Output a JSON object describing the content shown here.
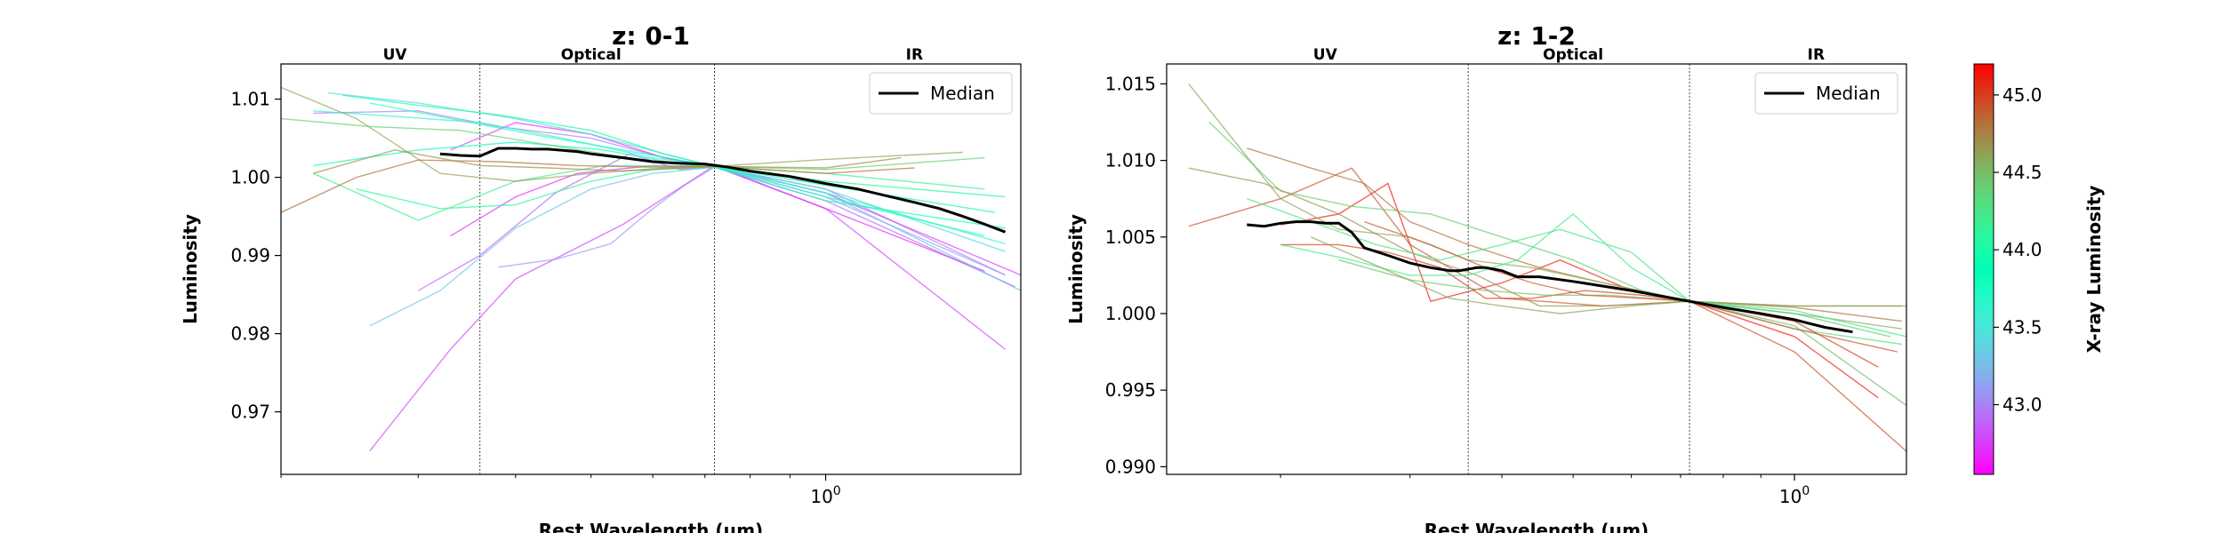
{
  "figure": {
    "colorbar": {
      "label": "X-ray Luminosity",
      "ticks": [
        "43.0",
        "43.5",
        "44.0",
        "44.5",
        "45.0"
      ],
      "range": [
        42.55,
        45.2
      ]
    }
  },
  "chart_data": [
    {
      "type": "line",
      "title": "z: 0-1",
      "xlabel": "Rest Wavelength (μm)",
      "ylabel": "Luminosity",
      "xscale": "log",
      "xlim": [
        0.2,
        1.78
      ],
      "ylim": [
        0.962,
        1.0145
      ],
      "yticks": [
        "0.97",
        "0.98",
        "0.99",
        "1.00",
        "1.01"
      ],
      "xtick_major": [
        "10^0"
      ],
      "vlines": [
        0.36,
        0.72
      ],
      "bands": [
        {
          "label": "UV",
          "x": 0.28
        },
        {
          "label": "Optical",
          "x": 0.5
        },
        {
          "label": "IR",
          "x": 1.3
        }
      ],
      "legend": {
        "label": "Median",
        "position": "upper right"
      },
      "median": {
        "x": [
          0.32,
          0.34,
          0.36,
          0.38,
          0.4,
          0.42,
          0.44,
          0.48,
          0.5,
          0.55,
          0.6,
          0.65,
          0.7,
          0.75,
          0.8,
          0.9,
          1.0,
          1.1,
          1.2,
          1.3,
          1.4,
          1.5,
          1.6,
          1.7
        ],
        "y": [
          1.003,
          1.0028,
          1.0027,
          1.0037,
          1.0037,
          1.0036,
          1.0036,
          1.0033,
          1.003,
          1.0025,
          1.002,
          1.0018,
          1.0017,
          1.0013,
          1.0008,
          1.0001,
          0.9992,
          0.9985,
          0.9976,
          0.9968,
          0.996,
          0.995,
          0.994,
          0.993
        ]
      },
      "series": [
        {
          "lum": 42.8,
          "x": [
            0.26,
            0.33,
            0.4,
            0.55,
            0.72,
            1.0,
            1.7
          ],
          "y": [
            0.965,
            0.978,
            0.987,
            0.994,
            1.0015,
            0.996,
            0.978
          ]
        },
        {
          "lum": 42.9,
          "x": [
            0.3,
            0.36,
            0.45,
            0.56,
            0.65,
            0.72,
            1.0,
            1.75
          ],
          "y": [
            0.9855,
            0.99,
            0.998,
            1.003,
            1.001,
            1.0013,
            0.997,
            0.986
          ]
        },
        {
          "lum": 42.7,
          "x": [
            0.33,
            0.4,
            0.48,
            0.6,
            0.72,
            1.0,
            1.6
          ],
          "y": [
            0.9925,
            0.9975,
            1.0005,
            1.0015,
            1.0014,
            0.996,
            0.988
          ]
        },
        {
          "lum": 43.0,
          "x": [
            0.22,
            0.3,
            0.38,
            0.5,
            0.62,
            0.72,
            1.0,
            1.7
          ],
          "y": [
            1.0082,
            1.0085,
            1.0065,
            1.005,
            1.0025,
            1.0013,
            0.9985,
            0.9875
          ]
        },
        {
          "lum": 42.75,
          "x": [
            0.33,
            0.4,
            0.5,
            0.62,
            0.72,
            1.0,
            1.78
          ],
          "y": [
            1.0035,
            1.007,
            1.0055,
            1.0025,
            1.0014,
            0.998,
            0.9875
          ]
        },
        {
          "lum": 43.1,
          "x": [
            0.38,
            0.45,
            0.53,
            0.6,
            0.66,
            0.72,
            1.0,
            1.7
          ],
          "y": [
            0.9885,
            0.9895,
            0.9915,
            0.996,
            0.999,
            1.0013,
            0.9975,
            0.9875
          ]
        },
        {
          "lum": 43.3,
          "x": [
            0.26,
            0.32,
            0.4,
            0.5,
            0.6,
            0.72,
            1.0,
            1.78
          ],
          "y": [
            0.981,
            0.9855,
            0.9935,
            0.9985,
            1.0005,
            1.0013,
            0.998,
            0.9855
          ]
        },
        {
          "lum": 43.4,
          "x": [
            0.23,
            0.3,
            0.4,
            0.5,
            0.62,
            0.72,
            1.0,
            1.7
          ],
          "y": [
            1.0108,
            1.0095,
            1.0075,
            1.0055,
            1.003,
            1.0014,
            0.9985,
            0.9905
          ]
        },
        {
          "lum": 43.6,
          "x": [
            0.22,
            0.28,
            0.36,
            0.46,
            0.6,
            0.72,
            1.0,
            1.7
          ],
          "y": [
            1.0085,
            1.0078,
            1.007,
            1.005,
            1.0025,
            1.0014,
            0.998,
            0.9915
          ]
        },
        {
          "lum": 43.7,
          "x": [
            0.26,
            0.33,
            0.42,
            0.55,
            0.72,
            1.0,
            1.6
          ],
          "y": [
            1.0095,
            1.0075,
            1.0055,
            1.0035,
            1.0014,
            0.9975,
            0.9925
          ]
        },
        {
          "lum": 43.8,
          "x": [
            0.22,
            0.3,
            0.4,
            0.52,
            0.64,
            0.72,
            1.0,
            1.7
          ],
          "y": [
            1.0015,
            1.0035,
            1.0045,
            1.0035,
            1.0018,
            1.0013,
            0.997,
            0.9935
          ]
        },
        {
          "lum": 44.0,
          "x": [
            0.24,
            0.3,
            0.38,
            0.5,
            0.62,
            0.72,
            1.0,
            1.65
          ],
          "y": [
            1.0105,
            1.0092,
            1.008,
            1.006,
            1.003,
            1.0014,
            0.999,
            0.9955
          ]
        },
        {
          "lum": 44.1,
          "x": [
            0.25,
            0.32,
            0.4,
            0.5,
            0.6,
            0.72,
            1.0,
            1.7
          ],
          "y": [
            0.9985,
            0.996,
            0.9965,
            0.9995,
            1.001,
            1.0013,
            0.9995,
            0.9975
          ]
        },
        {
          "lum": 44.2,
          "x": [
            0.22,
            0.3,
            0.4,
            0.52,
            0.72,
            1.0,
            1.6
          ],
          "y": [
            1.0005,
            0.9945,
            0.9995,
            1.0015,
            1.0014,
            1.0005,
            0.9985
          ]
        },
        {
          "lum": 44.4,
          "x": [
            0.2,
            0.26,
            0.34,
            0.45,
            0.6,
            0.72,
            1.0,
            1.6
          ],
          "y": [
            1.0075,
            1.0065,
            1.006,
            1.004,
            1.002,
            1.0014,
            1.001,
            1.0025
          ]
        },
        {
          "lum": 44.6,
          "x": [
            0.2,
            0.25,
            0.32,
            0.4,
            0.5,
            0.62,
            0.72,
            1.0,
            1.5
          ],
          "y": [
            1.0115,
            1.0075,
            1.0005,
            0.9995,
            1.0005,
            1.0012,
            1.0014,
            1.0023,
            1.0032
          ]
        },
        {
          "lum": 44.8,
          "x": [
            0.2,
            0.25,
            0.3,
            0.38,
            0.48,
            0.6,
            0.72,
            1.0,
            1.3
          ],
          "y": [
            0.9955,
            1.0,
            1.0022,
            1.002,
            1.0015,
            1.0013,
            1.0014,
            1.0005,
            1.0012
          ]
        },
        {
          "lum": 44.7,
          "x": [
            0.22,
            0.28,
            0.36,
            0.44,
            0.55,
            0.72,
            1.0,
            1.25
          ],
          "y": [
            1.0005,
            1.0035,
            1.0015,
            1.0012,
            1.0008,
            1.0014,
            1.0012,
            1.0025
          ]
        }
      ]
    },
    {
      "type": "line",
      "title": "z: 1-2",
      "xlabel": "Rest Wavelength (μm)",
      "ylabel": "Luminosity",
      "xscale": "log",
      "xlim": [
        0.14,
        1.42
      ],
      "ylim": [
        0.9895,
        1.0163
      ],
      "yticks": [
        "0.990",
        "0.995",
        "1.000",
        "1.005",
        "1.010",
        "1.015"
      ],
      "xtick_major": [
        "10^0"
      ],
      "vlines": [
        0.36,
        0.72
      ],
      "bands": [
        {
          "label": "UV",
          "x": 0.23
        },
        {
          "label": "Optical",
          "x": 0.5
        },
        {
          "label": "IR",
          "x": 1.07
        }
      ],
      "legend": {
        "label": "Median",
        "position": "upper right"
      },
      "median": {
        "x": [
          0.18,
          0.19,
          0.2,
          0.21,
          0.22,
          0.23,
          0.24,
          0.25,
          0.26,
          0.28,
          0.3,
          0.32,
          0.34,
          0.35,
          0.37,
          0.38,
          0.4,
          0.42,
          0.45,
          0.5,
          0.6,
          0.72,
          0.8,
          0.9,
          1.0,
          1.1,
          1.2
        ],
        "y": [
          1.0058,
          1.0057,
          1.0059,
          1.006,
          1.006,
          1.0059,
          1.0059,
          1.0053,
          1.0043,
          1.0038,
          1.0033,
          1.003,
          1.0028,
          1.0028,
          1.003,
          1.003,
          1.0028,
          1.0024,
          1.0024,
          1.0021,
          1.0015,
          1.0008,
          1.0004,
          1.0,
          0.9996,
          0.9991,
          0.9988
        ]
      },
      "series": [
        {
          "lum": 44.9,
          "x": [
            0.15,
            0.2,
            0.25,
            0.3,
            0.4,
            0.55,
            0.72,
            1.0,
            1.42
          ],
          "y": [
            1.0057,
            1.0075,
            1.0095,
            1.0045,
            1.001,
            1.0005,
            1.0008,
            0.9975,
            0.991
          ]
        },
        {
          "lum": 45.1,
          "x": [
            0.2,
            0.24,
            0.28,
            0.32,
            0.4,
            0.48,
            0.6,
            0.72,
            1.0,
            1.3
          ],
          "y": [
            1.0058,
            1.0065,
            1.0085,
            1.0008,
            1.002,
            1.0035,
            1.0015,
            1.0008,
            0.9985,
            0.9945
          ]
        },
        {
          "lum": 44.8,
          "x": [
            0.18,
            0.22,
            0.26,
            0.3,
            0.36,
            0.45,
            0.55,
            0.72,
            1.0,
            1.4
          ],
          "y": [
            1.0108,
            1.0095,
            1.0085,
            1.006,
            1.0045,
            1.003,
            1.002,
            1.0008,
            1.0004,
            0.9995
          ]
        },
        {
          "lum": 44.6,
          "x": [
            0.15,
            0.2,
            0.24,
            0.3,
            0.36,
            0.44,
            0.55,
            0.72,
            1.0,
            1.4
          ],
          "y": [
            1.015,
            1.0075,
            1.0055,
            1.005,
            1.0035,
            1.003,
            1.002,
            1.0008,
            1.0,
            0.999
          ]
        },
        {
          "lum": 44.4,
          "x": [
            0.16,
            0.2,
            0.25,
            0.32,
            0.4,
            0.5,
            0.62,
            0.72,
            1.0,
            1.35
          ],
          "y": [
            1.0125,
            1.008,
            1.007,
            1.0065,
            1.005,
            1.0035,
            1.0015,
            1.0008,
            1.0,
            0.9985
          ]
        },
        {
          "lum": 44.7,
          "x": [
            0.15,
            0.19,
            0.24,
            0.3,
            0.37,
            0.45,
            0.55,
            0.72,
            1.0,
            1.4
          ],
          "y": [
            1.0095,
            1.0085,
            1.0065,
            1.004,
            1.0025,
            1.0005,
            1.0005,
            1.0008,
            1.0005,
            1.0005
          ]
        },
        {
          "lum": 44.3,
          "x": [
            0.18,
            0.22,
            0.27,
            0.33,
            0.4,
            0.48,
            0.6,
            0.72,
            1.0,
            1.4
          ],
          "y": [
            1.0075,
            1.006,
            1.0045,
            1.0035,
            1.0045,
            1.0055,
            1.004,
            1.0008,
            0.999,
            0.998
          ]
        },
        {
          "lum": 45.0,
          "x": [
            0.2,
            0.24,
            0.28,
            0.33,
            0.38,
            0.44,
            0.52,
            0.62,
            0.72,
            1.0,
            1.3
          ],
          "y": [
            1.0045,
            1.0045,
            1.004,
            1.003,
            1.001,
            1.001,
            1.0015,
            1.0012,
            1.0008,
            0.9995,
            0.9965
          ]
        },
        {
          "lum": 44.2,
          "x": [
            0.2,
            0.25,
            0.3,
            0.36,
            0.42,
            0.5,
            0.6,
            0.72,
            1.0,
            1.42
          ],
          "y": [
            1.0045,
            1.0035,
            1.0025,
            1.0025,
            1.0035,
            1.0065,
            1.003,
            1.0008,
            1.0002,
            0.9985
          ]
        },
        {
          "lum": 44.5,
          "x": [
            0.24,
            0.3,
            0.38,
            0.46,
            0.56,
            0.72,
            1.0,
            1.42
          ],
          "y": [
            1.0035,
            1.0022,
            1.0015,
            1.0012,
            1.0012,
            1.0008,
            0.9992,
            0.994
          ]
        },
        {
          "lum": 44.9,
          "x": [
            0.26,
            0.32,
            0.38,
            0.44,
            0.52,
            0.62,
            0.72,
            1.0,
            1.38
          ],
          "y": [
            1.006,
            1.0045,
            1.003,
            1.002,
            1.0012,
            1.001,
            1.0008,
            0.999,
            0.9975
          ]
        },
        {
          "lum": 44.6,
          "x": [
            0.22,
            0.28,
            0.34,
            0.4,
            0.48,
            0.6,
            0.72,
            1.0,
            1.42
          ],
          "y": [
            1.005,
            1.0028,
            1.001,
            1.0005,
            1.0,
            1.0005,
            1.0008,
            1.0005,
            1.0005
          ]
        }
      ]
    }
  ]
}
